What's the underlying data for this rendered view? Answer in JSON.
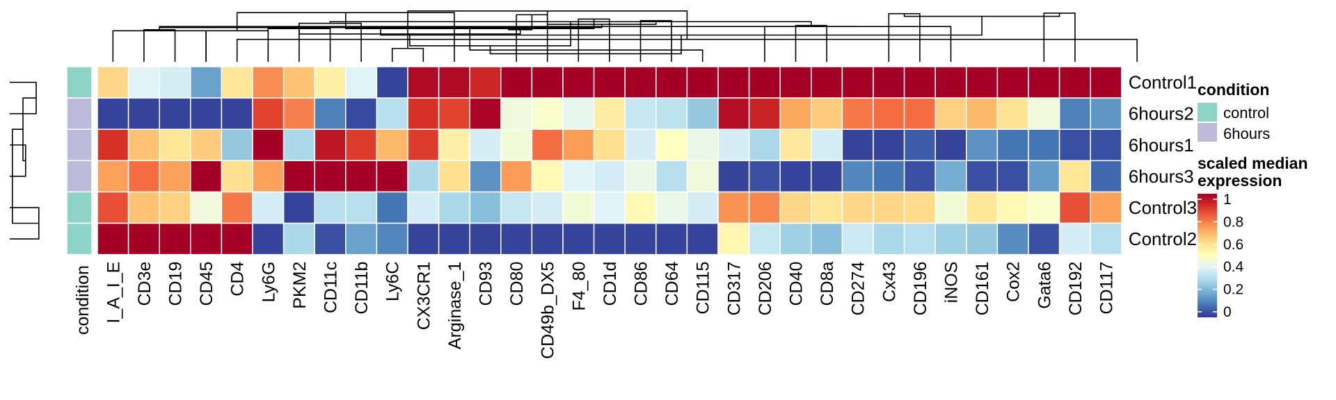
{
  "chart_data": {
    "type": "heatmap",
    "columns": [
      "I_A_I_E",
      "CD3e",
      "CD19",
      "CD45",
      "CD4",
      "Ly6G",
      "PKM2",
      "CD11c",
      "CD11b",
      "Ly6C",
      "CX3CR1",
      "Arginase_1",
      "CD93",
      "CD80",
      "CD49b_DX5",
      "F4_80",
      "CD1d",
      "CD86",
      "CD64",
      "CD115",
      "CD317",
      "CD206",
      "CD40",
      "CD8a",
      "CD274",
      "Cx43",
      "CD196",
      "iNOS",
      "CD161",
      "Cox2",
      "Gata6",
      "CD192",
      "CD117"
    ],
    "annotation_column_label": "condition",
    "rows": [
      {
        "name": "Control1",
        "condition": "control",
        "values": [
          0.62,
          0.4,
          0.38,
          0.18,
          0.58,
          0.75,
          0.66,
          0.55,
          0.4,
          0.02,
          0.98,
          0.98,
          0.92,
          1,
          1,
          1,
          1,
          1,
          1,
          1,
          1,
          1,
          1,
          1,
          1,
          1,
          1,
          1,
          1,
          1,
          1,
          1,
          1
        ]
      },
      {
        "name": "6hours2",
        "condition": "6hours",
        "values": [
          0.02,
          0.02,
          0.02,
          0.02,
          0.02,
          0.87,
          0.77,
          0.12,
          0.03,
          0.32,
          0.9,
          0.87,
          0.99,
          0.45,
          0.48,
          0.42,
          0.56,
          0.35,
          0.33,
          0.26,
          0.97,
          0.93,
          0.71,
          0.64,
          0.78,
          0.8,
          0.8,
          0.63,
          0.68,
          0.59,
          0.45,
          0.12,
          0.16
        ]
      },
      {
        "name": "6hours1",
        "condition": "6hours",
        "values": [
          0.9,
          0.66,
          0.58,
          0.64,
          0.26,
          1,
          0.3,
          0.95,
          0.88,
          0.68,
          0.88,
          0.55,
          0.38,
          0.46,
          0.8,
          0.73,
          0.6,
          0.38,
          0.5,
          0.43,
          0.38,
          0.3,
          0.57,
          0.38,
          0.02,
          0.02,
          0.06,
          0.02,
          0.15,
          0.1,
          0.1,
          0.04,
          0.04
        ]
      },
      {
        "name": "6hours3",
        "condition": "6hours",
        "values": [
          0.72,
          0.8,
          0.72,
          1,
          0.6,
          0.72,
          1,
          1,
          1,
          1,
          0.3,
          0.6,
          0.15,
          0.73,
          0.52,
          0.4,
          0.38,
          0.43,
          0.32,
          0.45,
          0.02,
          0.04,
          0.02,
          0.02,
          0.13,
          0.1,
          0.04,
          0.2,
          0.04,
          0.04,
          0.17,
          0.58,
          0.08
        ]
      },
      {
        "name": "Control3",
        "condition": "control",
        "values": [
          0.85,
          0.66,
          0.63,
          0.45,
          0.78,
          0.38,
          0.02,
          0.32,
          0.32,
          0.1,
          0.38,
          0.3,
          0.24,
          0.35,
          0.38,
          0.46,
          0.4,
          0.52,
          0.43,
          0.38,
          0.74,
          0.76,
          0.62,
          0.58,
          0.62,
          0.62,
          0.61,
          0.46,
          0.58,
          0.52,
          0.48,
          0.85,
          0.72
        ]
      },
      {
        "name": "Control2",
        "condition": "control",
        "values": [
          1,
          1,
          1,
          1,
          1,
          0.02,
          0.3,
          0.04,
          0.18,
          0.13,
          0.02,
          0.02,
          0.02,
          0.02,
          0.02,
          0.02,
          0.02,
          0.02,
          0.02,
          0.02,
          0.53,
          0.35,
          0.28,
          0.24,
          0.36,
          0.3,
          0.32,
          0.28,
          0.26,
          0.14,
          0.04,
          0.38,
          0.32
        ]
      }
    ],
    "condition_colors": {
      "control": "#8DD3C7",
      "6hours": "#BEBADA"
    },
    "colorscale": [
      "#313695",
      "#4575B4",
      "#74ADD1",
      "#ABD9E9",
      "#E0F3F8",
      "#FFFFBF",
      "#FEE090",
      "#FDAE61",
      "#F46D43",
      "#D73027",
      "#A50026"
    ],
    "value_range": [
      0,
      1
    ],
    "legend": {
      "condition_title": "condition",
      "condition_entries": [
        "control",
        "6hours"
      ],
      "colorbar_title_line1": "scaled median",
      "colorbar_title_line2": "expression",
      "colorbar_ticks": [
        "1",
        "0.8",
        "0.6",
        "0.4",
        "0.2",
        "0"
      ]
    },
    "col_dendrogram": [
      [
        9,
        10,
        0.25
      ],
      [
        4,
        33,
        0.42
      ],
      [
        0,
        3,
        0.58
      ],
      [
        1,
        2,
        0.6
      ],
      [
        5,
        7,
        0.62
      ],
      [
        6,
        8,
        0.72
      ],
      [
        3,
        5,
        0.58
      ],
      [
        13,
        14,
        0.88
      ],
      [
        15,
        16,
        0.8
      ],
      [
        25,
        26,
        0.9
      ],
      [
        30,
        31,
        0.91
      ],
      [
        22,
        23,
        0.68
      ],
      [
        21,
        27,
        0.66
      ],
      [
        17,
        18,
        0.77
      ],
      [
        -1,
        -2,
        0.95
      ],
      [
        -10,
        -11,
        0.85
      ],
      [
        -12,
        -6,
        0.75
      ],
      [
        -15,
        -14,
        0.7
      ],
      [
        -4,
        -13,
        0.66
      ],
      [
        -3,
        -18,
        0.64
      ],
      [
        11,
        -7,
        0.92
      ],
      [
        -9,
        -21,
        0.62
      ],
      [
        -8,
        -19,
        0.6
      ],
      [
        -5,
        -23,
        0.52
      ],
      [
        -16,
        -20,
        0.5
      ],
      [
        -17,
        -24,
        0.3
      ],
      [
        19,
        -22,
        0.22
      ],
      [
        -25,
        -26,
        0.15
      ]
    ],
    "row_dendrogram": [
      [
        0,
        1,
        0.5
      ],
      [
        2,
        3,
        0.3
      ],
      [
        4,
        5,
        0.55
      ],
      [
        -1,
        -2,
        0.25
      ],
      [
        -3,
        -4,
        0.05
      ]
    ]
  }
}
